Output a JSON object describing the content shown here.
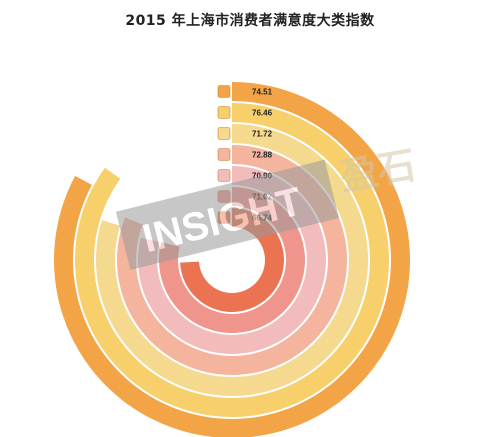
{
  "title": "2015 年上海市消费者满意度大类指数",
  "chart_data": {
    "type": "radial-bar",
    "title": "2015 年上海市消费者满意度大类指数",
    "categories": [
      {
        "icon": "food-icon",
        "value": 74.51,
        "label": "74.51",
        "color": "#f2a446"
      },
      {
        "icon": "home-appliance-icon",
        "value": 76.46,
        "label": "76.46",
        "color": "#f7cf6b"
      },
      {
        "icon": "car-icon",
        "value": 71.72,
        "label": "71.72",
        "color": "#f5d98e"
      },
      {
        "icon": "house-icon",
        "value": 72.88,
        "label": "72.88",
        "color": "#f4b49e"
      },
      {
        "icon": "clothing-icon",
        "value": 70.9,
        "label": "70.90",
        "color": "#f3bcbc"
      },
      {
        "icon": "bowl-icon",
        "value": 71.02,
        "label": "71.02",
        "color": "#f0958c"
      },
      {
        "icon": "medical-icon",
        "value": 66.74,
        "label": "66.74",
        "color": "#ec7352"
      }
    ],
    "legend_position": "top-center"
  },
  "watermark": {
    "brand": "INSIGHT",
    "cn": "盈石"
  }
}
